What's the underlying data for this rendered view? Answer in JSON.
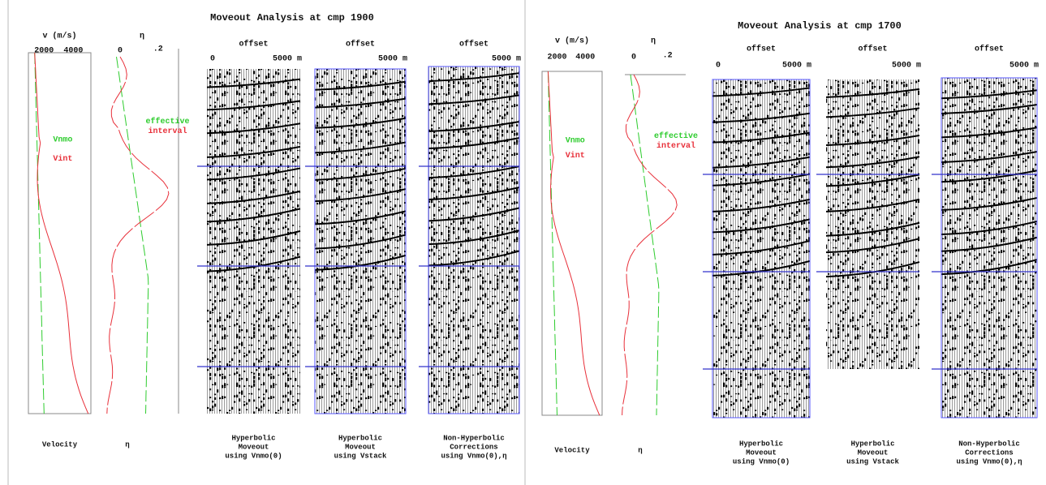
{
  "panels": [
    {
      "title": "Moveout Analysis at cmp 1900",
      "velocity": {
        "axis_label": "v (m/s)",
        "ticks": [
          "2000",
          "4000"
        ],
        "legend": [
          "Vnmo",
          "Vint"
        ],
        "caption": "Velocity"
      },
      "eta": {
        "axis_label": "η",
        "ticks": [
          "0",
          ".2"
        ],
        "legend": [
          "effective",
          "interval"
        ],
        "caption": "η"
      },
      "gathers": [
        {
          "axis_label": "offset",
          "ticks": [
            "0",
            "5000 m"
          ],
          "caption": [
            "Hyperbolic",
            "Moveout",
            "using Vnmo(0)"
          ]
        },
        {
          "axis_label": "offset",
          "ticks": [
            "5000 m"
          ],
          "caption": [
            "Hyperbolic",
            "Moveout",
            "using Vstack"
          ]
        },
        {
          "axis_label": "offset",
          "ticks": [
            "5000 m"
          ],
          "caption": [
            "Non-Hyperbolic",
            "Corrections",
            "using Vnmo(0),η"
          ]
        }
      ]
    },
    {
      "title": "Moveout Analysis at cmp 1700",
      "velocity": {
        "axis_label": "v (m/s)",
        "ticks": [
          "2000",
          "4000"
        ],
        "legend": [
          "Vnmo",
          "Vint"
        ],
        "caption": "Velocity"
      },
      "eta": {
        "axis_label": "η",
        "ticks": [
          "0",
          ".2"
        ],
        "legend": [
          "effective",
          "interval"
        ],
        "caption": "η"
      },
      "gathers": [
        {
          "axis_label": "offset",
          "ticks": [
            "0",
            "5000 m"
          ],
          "caption": [
            "Hyperbolic",
            "Moveout",
            "using Vnmo(0)"
          ]
        },
        {
          "axis_label": "offset",
          "ticks": [
            "5000 m"
          ],
          "caption": [
            "Hyperbolic",
            "Moveout",
            "using Vstack"
          ]
        },
        {
          "axis_label": "offset",
          "ticks": [
            "5000 m"
          ],
          "caption": [
            "Non-Hyperbolic",
            "Corrections",
            "using Vnmo(0),η"
          ]
        }
      ]
    }
  ]
}
